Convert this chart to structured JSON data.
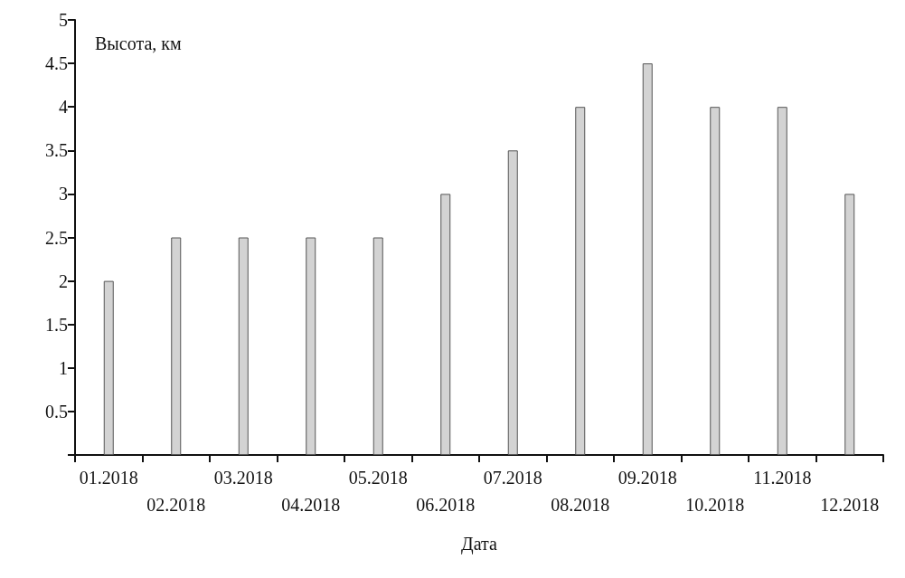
{
  "chart_data": {
    "type": "bar",
    "ylabel": "Высота, км",
    "xlabel": "Дата",
    "categories": [
      "01.2018",
      "02.2018",
      "03.2018",
      "04.2018",
      "05.2018",
      "06.2018",
      "07.2018",
      "08.2018",
      "09.2018",
      "10.2018",
      "11.2018",
      "12.2018"
    ],
    "values": [
      2,
      2.5,
      2.5,
      2.5,
      2.5,
      3,
      3.5,
      4,
      4.5,
      4,
      4,
      3
    ],
    "color": "#d3d3d3",
    "ylim": [
      0,
      5
    ],
    "yticks": [
      {
        "value": 0,
        "label": null
      },
      0.5,
      1,
      1.5,
      2,
      2.5,
      3,
      3.5,
      4,
      4.5,
      5
    ],
    "grid": false
  }
}
